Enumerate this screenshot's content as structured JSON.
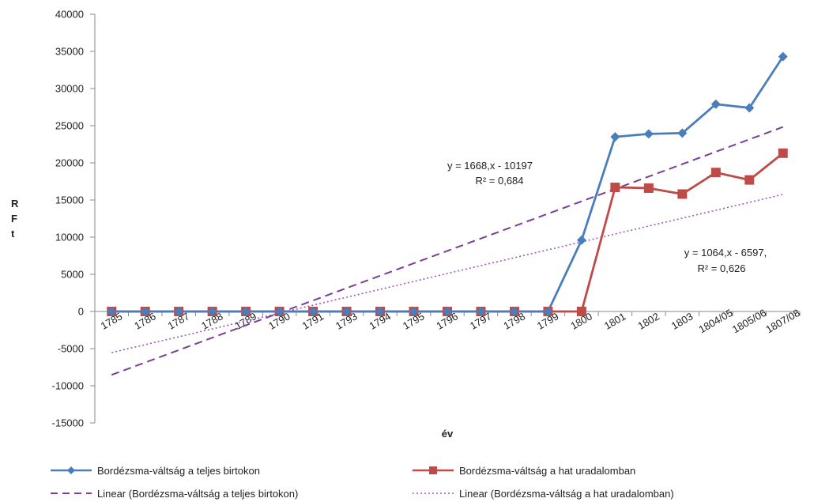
{
  "chart_data": {
    "type": "line",
    "title": "",
    "xlabel": "év",
    "ylabel": "RFt",
    "ylim": [
      -15000,
      40000
    ],
    "y_ticks": [
      "40000",
      "35000",
      "30000",
      "25000",
      "20000",
      "15000",
      "10000",
      "5000",
      "0",
      "-5000",
      "-10000",
      "-15000"
    ],
    "grid": false,
    "legend_position": "bottom",
    "categories": [
      "1785",
      "1786",
      "1787",
      "1788",
      "1789",
      "1790",
      "1791",
      "1793",
      "1794",
      "1795",
      "1796",
      "1797",
      "1798",
      "1799",
      "1800",
      "1801",
      "1802",
      "1803",
      "1804/05",
      "1805/06",
      "1807/08"
    ],
    "series": [
      {
        "name": "Bordézsma-váltság a teljes birtokon",
        "color": "#4a7ebb",
        "marker": "diamond",
        "values": [
          0,
          0,
          0,
          0,
          0,
          0,
          0,
          0,
          0,
          0,
          0,
          0,
          0,
          0,
          9600,
          23500,
          23900,
          24000,
          27900,
          27400,
          34300
        ]
      },
      {
        "name": "Bordézsma-váltság a hat uradalomban",
        "color": "#be4b48",
        "marker": "square",
        "values": [
          0,
          0,
          0,
          0,
          0,
          0,
          0,
          0,
          0,
          0,
          0,
          0,
          0,
          0,
          0,
          16700,
          16600,
          15800,
          18700,
          17700,
          21300
        ]
      }
    ],
    "trendlines": [
      {
        "name": "Linear (Bordézsma-váltság a teljes birtokon)",
        "color": "#7d3c98",
        "style": "dashed",
        "slope": 1668,
        "intercept": -10197,
        "equation": "y = 1668,x - 10197",
        "r2_label": "R² = 0,684"
      },
      {
        "name": "Linear (Bordézsma-váltság a hat uradalomban)",
        "color": "#9b59b6",
        "style": "dotted",
        "slope": 1064,
        "intercept": -6597,
        "equation": "y = 1064,x - 6597,",
        "r2_label": "R² = 0,626"
      }
    ]
  }
}
